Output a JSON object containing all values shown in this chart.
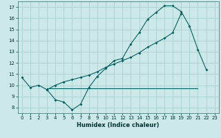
{
  "bg_color": "#cce8e8",
  "grid_color": "#aacfcf",
  "line_color": "#006060",
  "xlabel": "Humidex (Indice chaleur)",
  "xlim": [
    -0.5,
    23.5
  ],
  "ylim": [
    7.5,
    17.5
  ],
  "yticks": [
    8,
    9,
    10,
    11,
    12,
    13,
    14,
    15,
    16,
    17
  ],
  "xticks": [
    0,
    1,
    2,
    3,
    4,
    5,
    6,
    7,
    8,
    9,
    10,
    11,
    12,
    13,
    14,
    15,
    16,
    17,
    18,
    19,
    20,
    21,
    22,
    23
  ],
  "curve1_x": [
    0,
    1,
    2,
    3,
    4,
    5,
    6,
    7,
    8,
    9,
    10,
    11,
    12,
    13,
    14,
    15,
    16,
    17,
    18,
    19,
    20,
    21,
    22
  ],
  "curve1_y": [
    10.7,
    9.8,
    10.0,
    9.6,
    8.7,
    8.5,
    7.8,
    8.3,
    9.8,
    10.8,
    11.5,
    12.2,
    12.4,
    13.7,
    14.7,
    15.9,
    16.5,
    17.1,
    17.1,
    16.6,
    15.3,
    13.2,
    11.4
  ],
  "curve2_x": [
    3,
    4,
    5,
    6,
    7,
    8,
    9,
    10,
    11,
    12,
    13,
    14,
    15,
    16,
    17,
    18,
    19
  ],
  "curve2_y": [
    9.6,
    10.0,
    10.3,
    10.5,
    10.7,
    10.9,
    11.2,
    11.6,
    11.9,
    12.2,
    12.5,
    12.9,
    13.4,
    13.8,
    14.2,
    14.7,
    16.4
  ],
  "curve3_x": [
    3,
    21
  ],
  "curve3_y": [
    9.7,
    9.7
  ]
}
